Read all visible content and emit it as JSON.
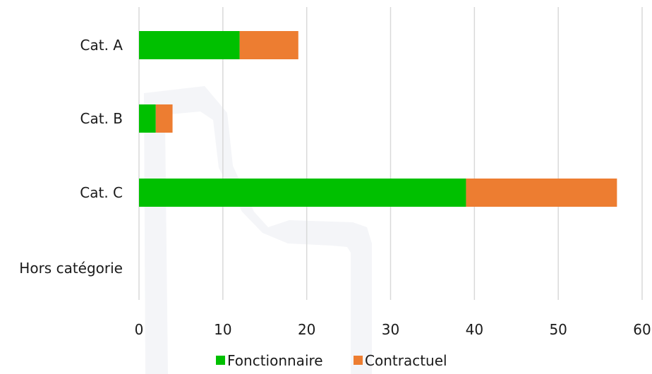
{
  "chart_data": {
    "type": "bar",
    "orientation": "horizontal",
    "stacked": true,
    "categories": [
      "Cat. A",
      "Cat. B",
      "Cat. C",
      "Hors catégorie"
    ],
    "series": [
      {
        "name": "Fonctionnaire",
        "values": [
          12,
          2,
          39,
          0
        ],
        "color": "#00c000"
      },
      {
        "name": "Contractuel",
        "values": [
          7,
          2,
          18,
          0
        ],
        "color": "#ed7d31"
      }
    ],
    "xlim": [
      0,
      60
    ],
    "xticks": [
      0,
      10,
      20,
      30,
      40,
      50,
      60
    ],
    "grid": true,
    "legend_position": "bottom"
  }
}
